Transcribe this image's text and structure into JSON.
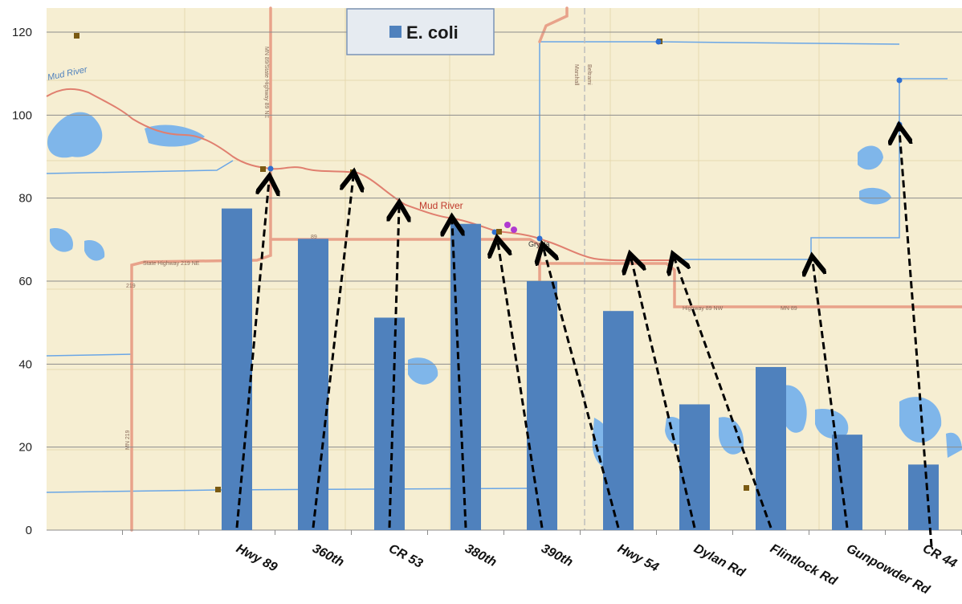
{
  "chart_data": {
    "type": "bar",
    "categories": [
      "Hwy 89",
      "360th",
      "CR 53",
      "380th",
      "390th",
      "Hwy 54",
      "Dylan Rd",
      "Flintlock Rd",
      "Gunpowder Rd",
      "CR 44"
    ],
    "series": [
      {
        "name": "E. coli",
        "values": [
          77.5,
          70.2,
          51.2,
          73.8,
          60.0,
          52.8,
          30.3,
          39.3,
          23.0,
          15.8
        ]
      }
    ],
    "ylim": [
      0,
      120
    ],
    "yticks": [
      "0",
      "20",
      "40",
      "60",
      "80",
      "100",
      "120"
    ],
    "grid": true,
    "legend": "top-center",
    "bar_color": "#4f81bd",
    "background": "map",
    "annotations": "dashed arrows from each site label to its sampling location on the map"
  },
  "map": {
    "river_label": "Mud River",
    "river_label_2": "Mud River",
    "town_label": "Grygla",
    "road_labels": [
      "State Highway 219 NE",
      "MN 89/State Highway 89 NE",
      "Highway 89 NW",
      "MN 89",
      "MN 219",
      "219",
      "89",
      "Marshall",
      "Beltrami"
    ],
    "colors": {
      "background": "#f6eed2",
      "water": "#7fb6ea",
      "road": "#e8a28a",
      "river": "#e07f6f",
      "marker_brown": "#7a5a12",
      "marker_blue": "#2f6fd0",
      "marker_purple": "#b03ad0"
    }
  }
}
